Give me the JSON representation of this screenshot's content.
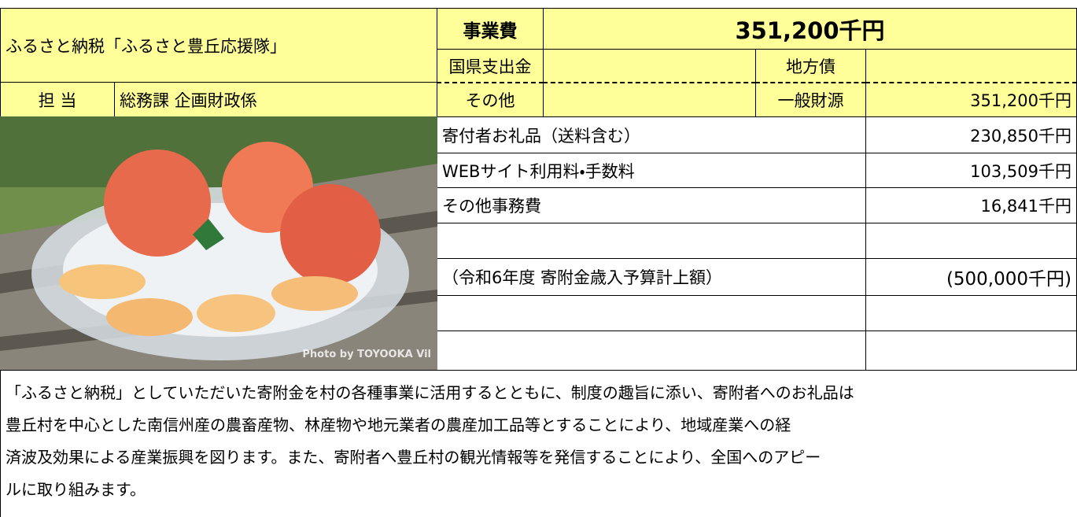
{
  "header": {
    "title": "ふるさと納税「ふるさと豊丘応援隊」",
    "cost_label": "事業費",
    "cost_total": "351,200千円"
  },
  "assignee": {
    "label": "担 当",
    "department": "総務課 企画財政係"
  },
  "funding": {
    "national_prefectural": "国県支出金",
    "local_bonds": "地方債",
    "other": "その他",
    "general_revenue": "一般財源",
    "general_revenue_amount": "351,200千円"
  },
  "breakdown": [
    {
      "item": "寄付者お礼品（送料含む）",
      "amount": "230,850千円"
    },
    {
      "item": "WEBサイト利用料・手数料",
      "amount": "103,509千円"
    },
    {
      "item": "その他事務費",
      "amount": "16,841千円"
    }
  ],
  "note": {
    "item": "（令和6年度 寄附金歳入予算計上額）",
    "amount": "(500,000千円)"
  },
  "photo": {
    "credit": "Photo by TOYOOKA Vil"
  },
  "description": {
    "lines": [
      "「ふるさと納税」としていただいた寄附金を村の各種事業に活用するとともに、制度の趣旨に添い、寄附者へのお礼品は",
      "豊丘村を中心とした南信州産の農畜産物、林産物や地元業者の農産加工品等とすることにより、地域産業への経",
      "済波及効果による産業振興を図ります。また、寄附者へ豊丘村の観光情報等を発信することにより、全国へのアピー",
      "ルに取り組みます。"
    ]
  }
}
